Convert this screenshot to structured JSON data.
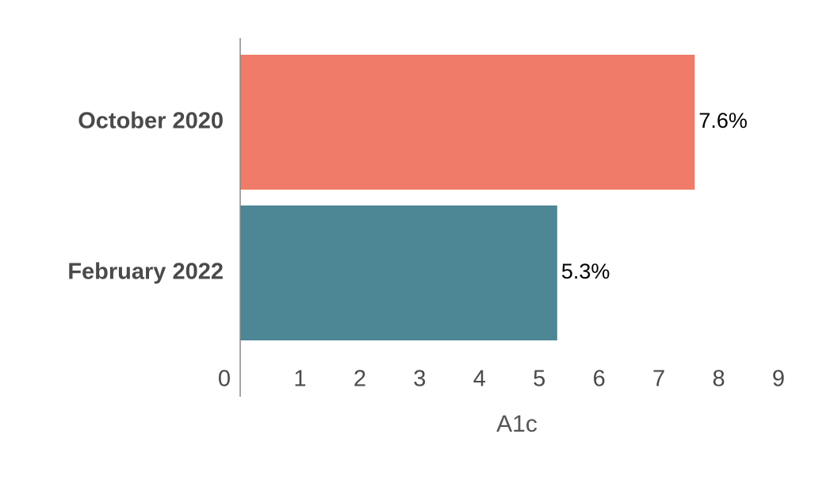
{
  "chart_data": {
    "type": "bar",
    "orientation": "horizontal",
    "categories": [
      "October 2020",
      "February 2022"
    ],
    "values": [
      7.6,
      5.3
    ],
    "value_labels": [
      "7.6%",
      "5.3%"
    ],
    "colors": [
      "#f07b68",
      "#4d8694"
    ],
    "x_label": "A1c",
    "xlim": [
      0,
      9
    ],
    "xticks": [
      0,
      1,
      2,
      3,
      4,
      5,
      6,
      7,
      8,
      9
    ]
  }
}
